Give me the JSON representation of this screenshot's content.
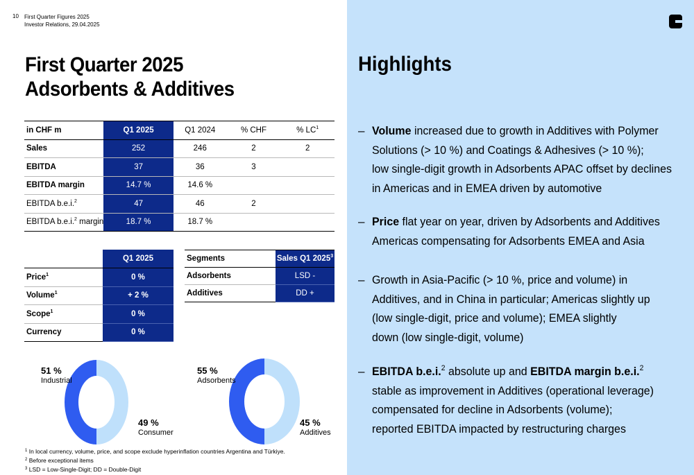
{
  "header": {
    "page_number": "10",
    "line1": "First Quarter Figures 2025",
    "line2": "Investor Relations, 29.04.2025"
  },
  "title": {
    "line1": "First Quarter 2025",
    "line2": "Adsorbents & Additives"
  },
  "kpi_table": {
    "headers": [
      "in CHF m",
      "Q1 2025",
      "Q1 2024",
      "% CHF",
      "% LC"
    ],
    "lc_footnote": "1",
    "rows": [
      {
        "label": "Sales",
        "q1_2025": "252",
        "q1_2024": "246",
        "chf": "2",
        "lc": "2"
      },
      {
        "label": "EBITDA",
        "q1_2025": "37",
        "q1_2024": "36",
        "chf": "3",
        "lc": ""
      },
      {
        "label": "EBITDA margin",
        "q1_2025": "14.7 %",
        "q1_2024": "14.6 %",
        "chf": "",
        "lc": ""
      },
      {
        "label": "EBITDA b.e.i.",
        "sup": "2",
        "q1_2025": "47",
        "q1_2024": "46",
        "chf": "2",
        "lc": ""
      },
      {
        "label": "EBITDA b.e.i.",
        "sup": "2",
        "label_suffix": " margin",
        "q1_2025": "18.7 %",
        "q1_2024": "18.7 %",
        "chf": "",
        "lc": ""
      }
    ]
  },
  "drivers_table": {
    "header": "Q1 2025",
    "rows": [
      {
        "label": "Price",
        "sup": "1",
        "value": "0 %"
      },
      {
        "label": "Volume",
        "sup": "1",
        "value": "+ 2 %"
      },
      {
        "label": "Scope",
        "sup": "1",
        "value": "0 %"
      },
      {
        "label": "Currency",
        "sup": "",
        "value": "0 %"
      }
    ]
  },
  "segments_table": {
    "header_label": "Segments",
    "header_value": "Sales Q1 2025",
    "header_sup": "3",
    "rows": [
      {
        "label": "Adsorbents",
        "value": "LSD -"
      },
      {
        "label": "Additives",
        "value": "DD +"
      }
    ]
  },
  "donut_1": {
    "segments": [
      {
        "label": "Industrial",
        "pct": "51 %",
        "value": 51,
        "color": "#2f5cf0"
      },
      {
        "label": "Consumer",
        "pct": "49 %",
        "value": 49,
        "color": "#bfe0fb"
      }
    ]
  },
  "donut_2": {
    "segments": [
      {
        "label": "Adsorbents",
        "pct": "55 %",
        "value": 55,
        "color": "#bfe0fb"
      },
      {
        "label": "Additives",
        "pct": "45 %",
        "value": 45,
        "color": "#2f5cf0"
      }
    ]
  },
  "footnotes": [
    {
      "num": "1",
      "text": "In local currency, volume, price, and scope exclude hyperinflation countries Argentina and Türkiye."
    },
    {
      "num": "2",
      "text": "Before exceptional items"
    },
    {
      "num": "3",
      "text": "LSD = Low-Single-Digit; DD = Double-Digit"
    }
  ],
  "highlights": {
    "title": "Highlights",
    "dash": "–",
    "b1": {
      "bold": "Volume",
      "l1": " increased due to growth in Additives with Polymer",
      "l2": "Solutions (> 10 %) and Coatings & Adhesives (> 10 %);",
      "l3": "low single-digit growth in Adsorbents APAC offset by declines",
      "l4": "in Americas and in EMEA driven by automotive"
    },
    "b2": {
      "bold": "Price",
      "l1": " flat year on year, driven by Adsorbents and Additives",
      "l2": "Americas compensating for Adsorbents EMEA and Asia"
    },
    "b3": {
      "l1": "Growth in Asia-Pacific (> 10 %, price and volume) in",
      "l2": "Additives, and in China in particular; Americas slightly up",
      "l3": "(low single-digit, price and volume); EMEA slightly",
      "l4": "down (low single-digit, volume)"
    },
    "b4": {
      "bold1": "EBITDA b.e.i.",
      "sup": "2",
      "mid": " absolute up and ",
      "bold2": "EBITDA margin b.e.i.",
      "l2": "stable as improvement in Additives (operational leverage)",
      "l3": "compensated for decline in Adsorbents (volume);",
      "l4": "reported EBITDA impacted by restructuring charges"
    }
  }
}
